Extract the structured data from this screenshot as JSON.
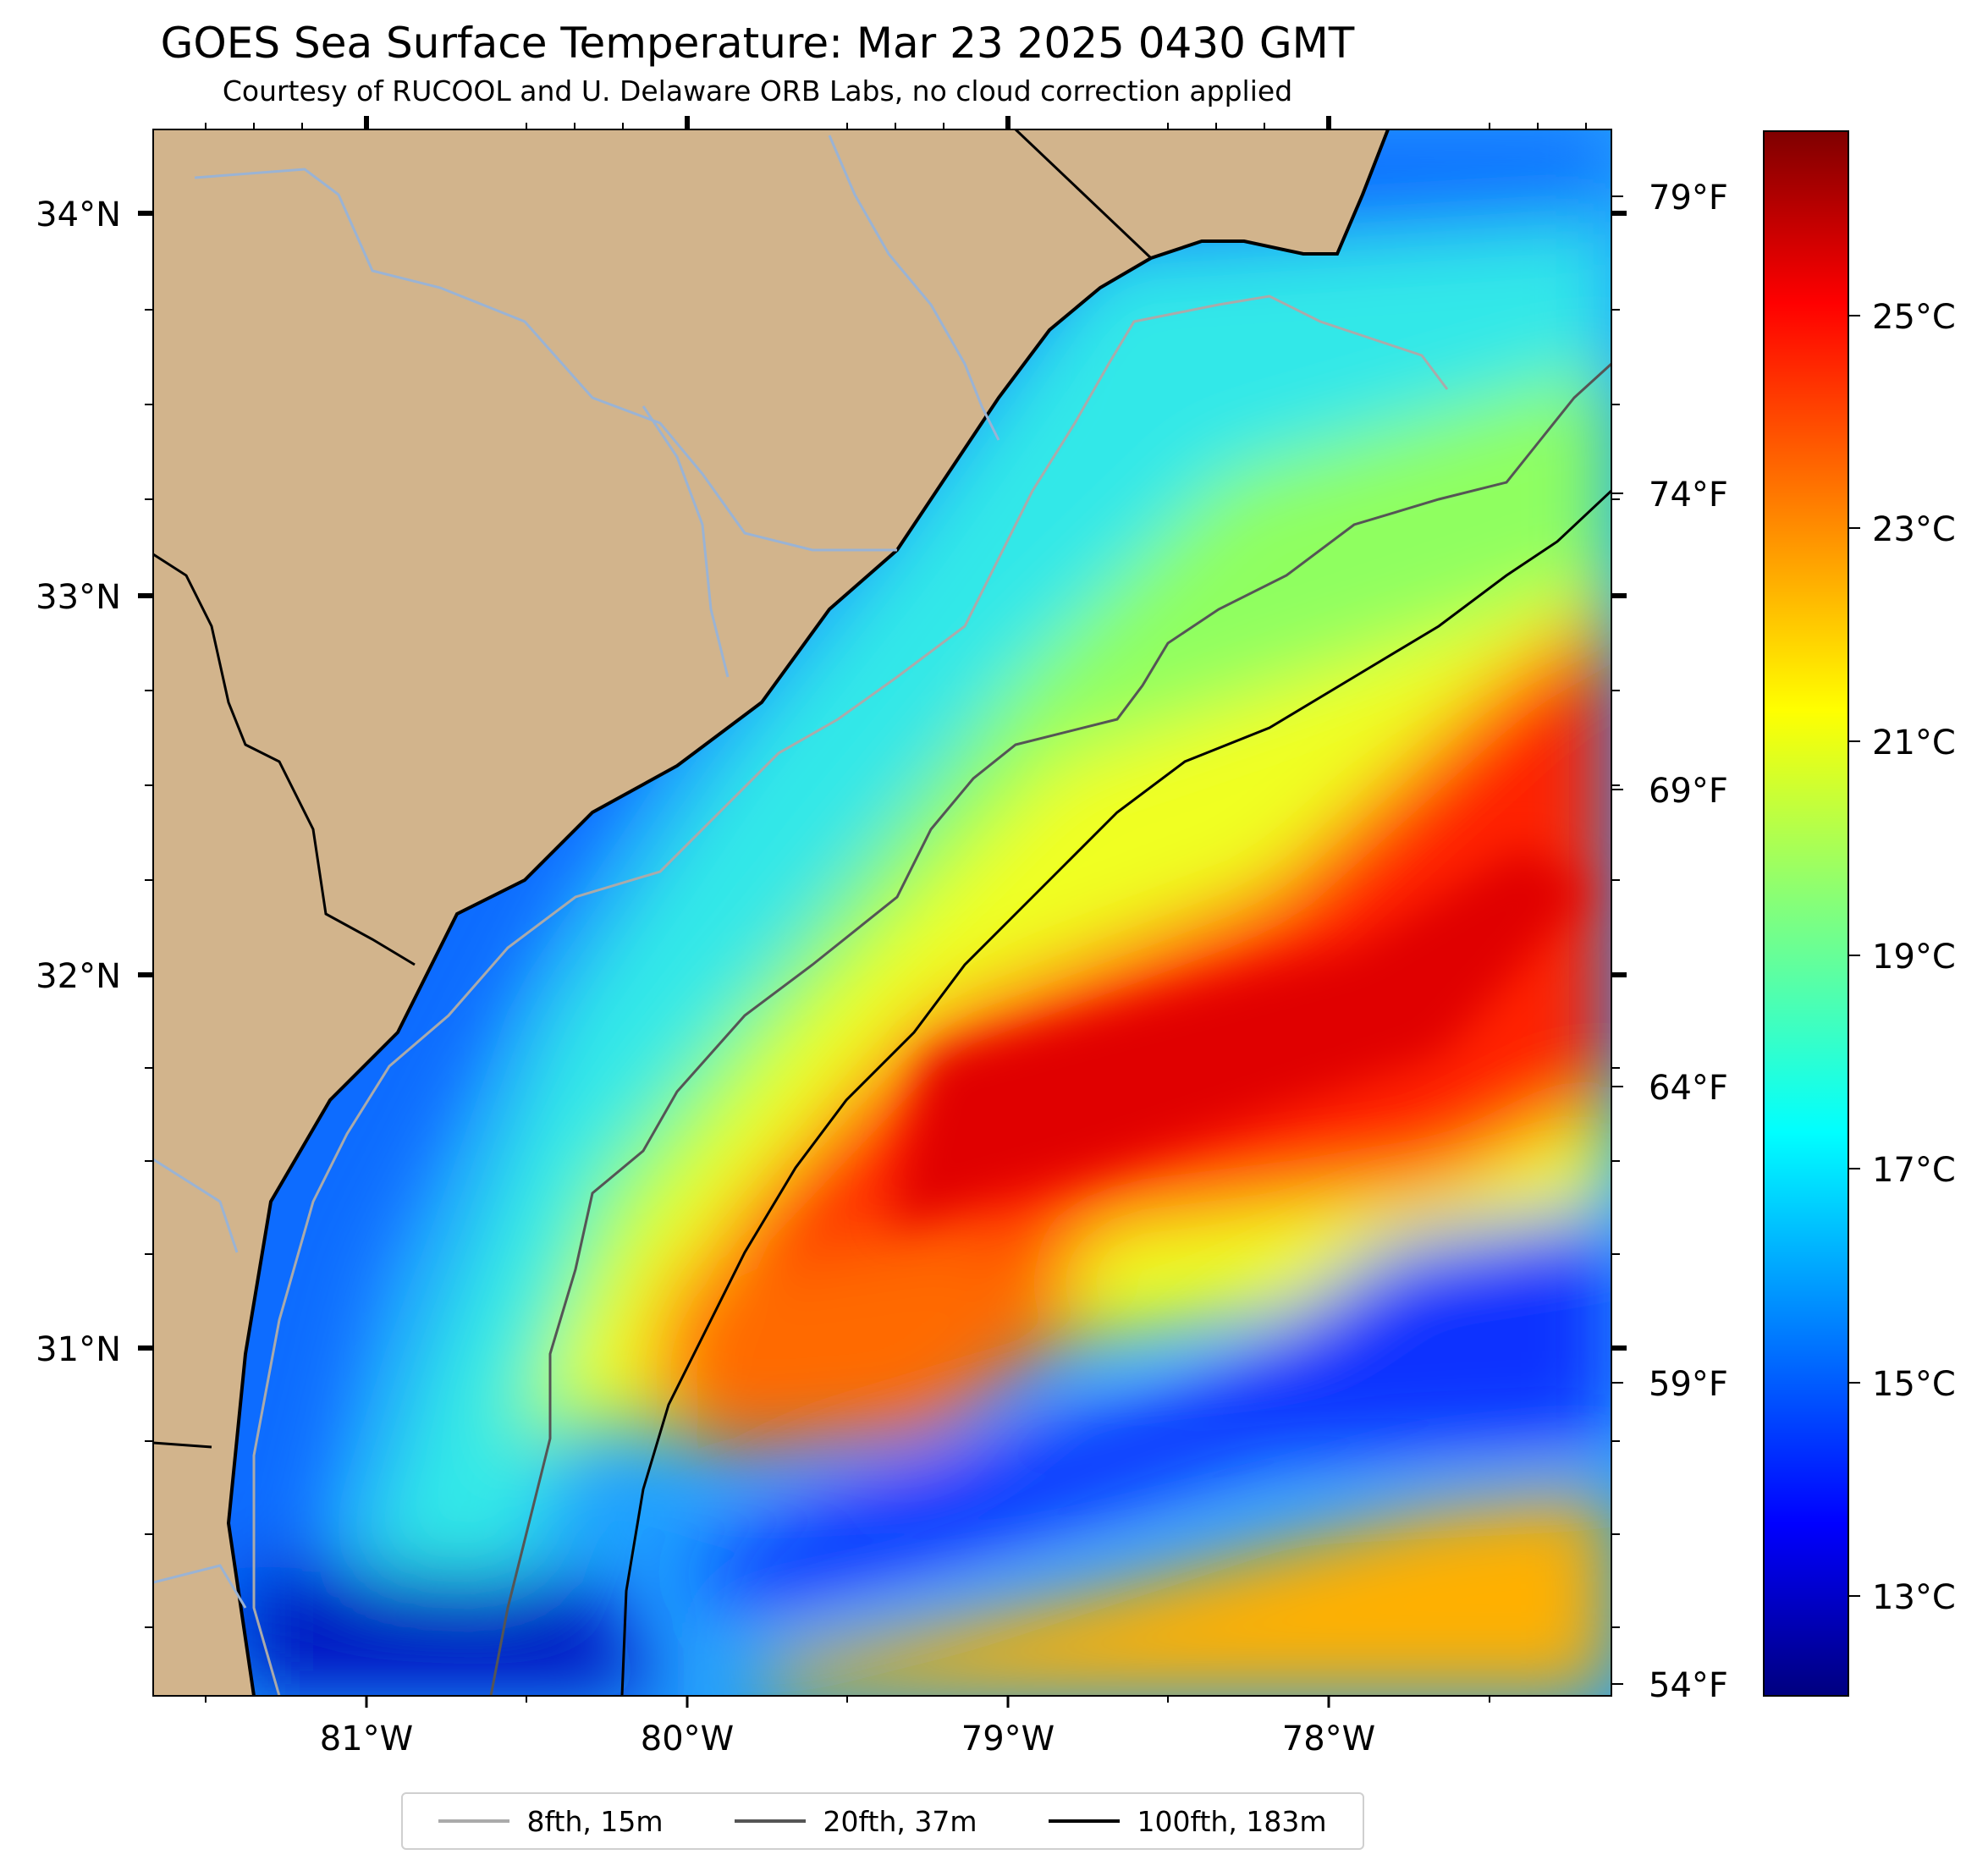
{
  "title": "GOES Sea Surface Temperature: Mar 23 2025 0430 GMT",
  "subtitle": "Courtesy of RUCOOL and U. Delaware ORB Labs, no cloud correction applied",
  "map": {
    "lat_labels": [
      "34°N",
      "33°N",
      "32°N",
      "31°N"
    ],
    "lon_labels": [
      "81°W",
      "80°W",
      "79°W",
      "78°W"
    ],
    "land_color": "#d2b48c",
    "right_axis_f_labels": [
      "79°F",
      "74°F",
      "69°F",
      "64°F",
      "59°F",
      "54°F"
    ]
  },
  "colorbar": {
    "colormap": "jet",
    "labels": [
      "25°C",
      "23°C",
      "21°C",
      "19°C",
      "17°C",
      "15°C",
      "13°C"
    ]
  },
  "legend": [
    {
      "label": "8fth, 15m",
      "color": "#aaaaaa"
    },
    {
      "label": "20fth, 37m",
      "color": "#555555"
    },
    {
      "label": "100fth, 183m",
      "color": "#000000"
    }
  ]
}
